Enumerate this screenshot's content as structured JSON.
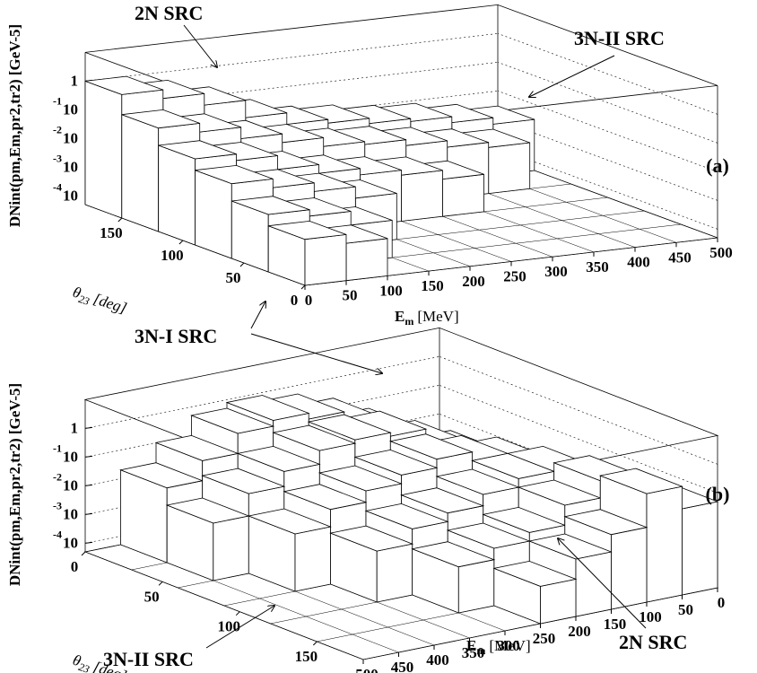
{
  "chart_data": [
    {
      "type": "lego",
      "panel_label": "(a)",
      "xlabel": "E",
      "xlabel_sub": "m",
      "xlabel_unit": "[MeV]",
      "ylabel": "θ",
      "ylabel_sub": "23",
      "ylabel_unit": "[deg]",
      "zlabel": "DNint(pm,Em,pr2,tr2) [GeV-5]",
      "xbins": [
        0,
        50,
        100,
        150,
        200,
        250,
        300,
        350,
        400,
        450,
        500
      ],
      "ybins": [
        0,
        30,
        60,
        90,
        120,
        150,
        180
      ],
      "values": [
        [
          0.002,
          0.001,
          null,
          null,
          null,
          null,
          null,
          null,
          null,
          null
        ],
        [
          0.005,
          0.003,
          0.001,
          null,
          null,
          null,
          null,
          null,
          null,
          null
        ],
        [
          0.02,
          0.01,
          0.005,
          0.002,
          null,
          null,
          null,
          null,
          null,
          null
        ],
        [
          0.05,
          0.03,
          0.01,
          0.005,
          0.003,
          0.002,
          0.001,
          null,
          null,
          null
        ],
        [
          0.2,
          0.1,
          0.04,
          0.02,
          0.01,
          0.008,
          0.005,
          0.003,
          0.002,
          null
        ],
        [
          1,
          0.5,
          0.2,
          0.05,
          0.02,
          0.015,
          0.01,
          0.008,
          0.005,
          0.003
        ]
      ],
      "xlim": [
        0,
        500
      ],
      "xticks": [
        0,
        50,
        100,
        150,
        200,
        250,
        300,
        350,
        400,
        450,
        500
      ],
      "ylim": [
        0,
        180
      ],
      "yticks": [
        0,
        50,
        100,
        150
      ],
      "zlim": [
        5e-05,
        10
      ],
      "zlog": true,
      "zticks": [
        {
          "value": 0.0001,
          "label": "10",
          "exponent": "-4"
        },
        {
          "value": 0.001,
          "label": "10",
          "exponent": "-3"
        },
        {
          "value": 0.01,
          "label": "10",
          "exponent": "-2"
        },
        {
          "value": 0.1,
          "label": "10",
          "exponent": "-1"
        },
        1
      ],
      "annotations": [
        "2N SRC",
        "3N-II SRC"
      ]
    },
    {
      "type": "lego",
      "panel_label": "(b)",
      "xlabel": "E",
      "xlabel_sub": "m",
      "xlabel_unit": "[MeV]",
      "ylabel": "θ",
      "ylabel_sub": "23",
      "ylabel_unit": "[deg]",
      "zlabel": "DNint(pm,Em,pr2,tr2) [GeV-5]",
      "xbins": [
        0,
        50,
        100,
        150,
        200,
        250,
        300,
        350,
        400,
        450,
        500
      ],
      "ybins": [
        0,
        30,
        60,
        90,
        120,
        150,
        180
      ],
      "values": [
        [
          null,
          0.01,
          0.05,
          0.2,
          0.5,
          0.8,
          0.5,
          0.1,
          0.02,
          null
        ],
        [
          null,
          0.02,
          0.08,
          0.3,
          0.4,
          0.3,
          0.1,
          0.03,
          0.005,
          null
        ],
        [
          0.001,
          0.05,
          0.1,
          0.2,
          0.1,
          0.05,
          0.02,
          0.005,
          null,
          null
        ],
        [
          0.005,
          0.1,
          0.1,
          0.05,
          0.02,
          0.01,
          0.003,
          null,
          null,
          null
        ],
        [
          0.02,
          0.2,
          0.05,
          0.01,
          0.005,
          0.002,
          null,
          null,
          null,
          null
        ],
        [
          0.05,
          0.3,
          0.02,
          0.005,
          0.001,
          null,
          null,
          null,
          null,
          null
        ]
      ],
      "xlim": [
        0,
        500
      ],
      "xticks": [
        500,
        450,
        400,
        350,
        300,
        250,
        200,
        150,
        100,
        50,
        0
      ],
      "ylim": [
        0,
        180
      ],
      "yticks": [
        0,
        50,
        100,
        150
      ],
      "zlim": [
        5e-05,
        10
      ],
      "zlog": true,
      "zticks": [
        {
          "value": 0.0001,
          "label": "10",
          "exponent": "-4"
        },
        {
          "value": 0.001,
          "label": "10",
          "exponent": "-3"
        },
        {
          "value": 0.01,
          "label": "10",
          "exponent": "-2"
        },
        {
          "value": 0.1,
          "label": "10",
          "exponent": "-1"
        },
        1
      ],
      "annotations": [
        "2N SRC",
        "3N-II SRC"
      ]
    }
  ],
  "annotation": "3N-I SRC"
}
